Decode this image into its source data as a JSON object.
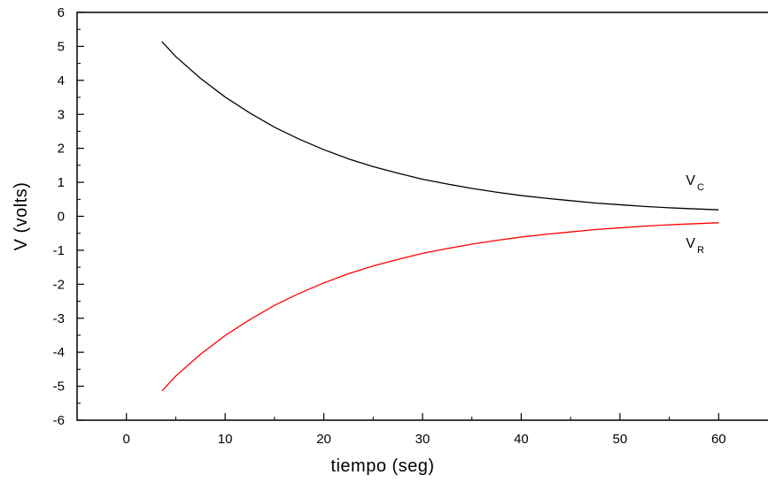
{
  "chart_data": {
    "type": "line",
    "title": "",
    "xlabel": "tiempo (seg)",
    "ylabel": "V (volts)",
    "xlim": [
      -5,
      65
    ],
    "ylim": [
      -6,
      6
    ],
    "xticks": [
      0,
      10,
      20,
      30,
      40,
      50,
      60
    ],
    "yticks": [
      -6,
      -5,
      -4,
      -3,
      -2,
      -1,
      0,
      1,
      2,
      3,
      4,
      5,
      6
    ],
    "grid": false,
    "legend": "none",
    "series": [
      {
        "name": "V",
        "subscript": "C",
        "color": "#000000",
        "x": [
          3.6,
          5,
          7.5,
          10,
          12.5,
          15,
          17.5,
          20,
          22.5,
          25,
          27.5,
          30,
          32.5,
          35,
          37.5,
          40,
          42.5,
          45,
          47.5,
          50,
          52.5,
          55,
          57.5,
          60
        ],
        "y": [
          5.14,
          4.7,
          4.06,
          3.51,
          3.04,
          2.62,
          2.27,
          1.96,
          1.69,
          1.46,
          1.27,
          1.09,
          0.95,
          0.82,
          0.71,
          0.61,
          0.53,
          0.46,
          0.39,
          0.34,
          0.29,
          0.25,
          0.22,
          0.19
        ]
      },
      {
        "name": "V",
        "subscript": "R",
        "color": "#ff0000",
        "x": [
          3.6,
          5,
          7.5,
          10,
          12.5,
          15,
          17.5,
          20,
          22.5,
          25,
          27.5,
          30,
          32.5,
          35,
          37.5,
          40,
          42.5,
          45,
          47.5,
          50,
          52.5,
          55,
          57.5,
          60
        ],
        "y": [
          -5.14,
          -4.7,
          -4.06,
          -3.51,
          -3.04,
          -2.62,
          -2.27,
          -1.96,
          -1.69,
          -1.46,
          -1.27,
          -1.09,
          -0.95,
          -0.82,
          -0.71,
          -0.61,
          -0.53,
          -0.46,
          -0.39,
          -0.34,
          -0.29,
          -0.25,
          -0.22,
          -0.19
        ]
      }
    ]
  }
}
